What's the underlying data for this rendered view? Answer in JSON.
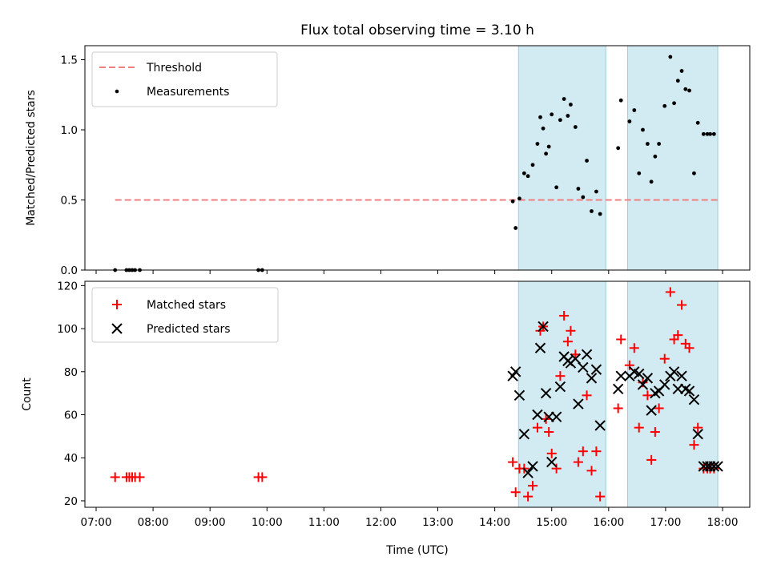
{
  "chart_data": [
    {
      "type": "scatter",
      "title": "Flux total observing time = 3.10 h",
      "ylabel": "Matched/Predicted stars",
      "xlabel": "",
      "ylim": [
        0,
        1.6
      ],
      "yticks": [
        0.0,
        0.5,
        1.0,
        1.5
      ],
      "ytick_labels": [
        "0.0",
        "0.5",
        "1.0",
        "1.5"
      ],
      "threshold": {
        "name": "Threshold",
        "value": 0.5,
        "x_start": "07:20",
        "x_end": "17:55",
        "color": "#f08080"
      },
      "shaded_intervals": [
        [
          "14:25",
          "15:57"
        ],
        [
          "16:20",
          "17:55"
        ]
      ],
      "legend": {
        "placement": "top-left",
        "entries": [
          "Threshold",
          "Measurements"
        ]
      },
      "series": [
        {
          "name": "Measurements",
          "color": "#000000",
          "x": [
            "07:20",
            "07:32",
            "07:35",
            "07:38",
            "07:41",
            "07:46",
            "09:51",
            "09:55",
            "14:19",
            "14:22",
            "14:26",
            "14:31",
            "14:35",
            "14:40",
            "14:45",
            "14:48",
            "14:51",
            "14:54",
            "14:57",
            "15:00",
            "15:05",
            "15:09",
            "15:13",
            "15:17",
            "15:20",
            "15:25",
            "15:28",
            "15:33",
            "15:37",
            "15:42",
            "15:47",
            "15:51",
            "16:10",
            "16:13",
            "16:22",
            "16:27",
            "16:32",
            "16:36",
            "16:41",
            "16:45",
            "16:49",
            "16:53",
            "16:59",
            "17:05",
            "17:09",
            "17:13",
            "17:17",
            "17:21",
            "17:25",
            "17:30",
            "17:34",
            "17:40",
            "17:44",
            "17:47",
            "17:51"
          ],
          "y": [
            0.0,
            0.0,
            0.0,
            0.0,
            0.0,
            0.0,
            0.0,
            0.0,
            0.49,
            0.3,
            0.51,
            0.69,
            0.67,
            0.75,
            0.9,
            1.09,
            1.01,
            0.83,
            0.88,
            1.11,
            0.59,
            1.07,
            1.22,
            1.1,
            1.18,
            1.02,
            0.58,
            0.52,
            0.78,
            0.42,
            0.56,
            0.4,
            0.87,
            1.21,
            1.06,
            1.14,
            0.69,
            1.0,
            0.9,
            0.63,
            0.81,
            0.9,
            1.17,
            1.52,
            1.19,
            1.35,
            1.42,
            1.29,
            1.28,
            0.69,
            1.05,
            0.97,
            0.97,
            0.97,
            0.97
          ]
        }
      ]
    },
    {
      "type": "scatter",
      "title": "",
      "ylabel": "Count",
      "xlabel": "Time (UTC)",
      "ylim": [
        17,
        122
      ],
      "yticks": [
        20,
        40,
        60,
        80,
        100,
        120
      ],
      "ytick_labels": [
        "20",
        "40",
        "60",
        "80",
        "100",
        "120"
      ],
      "xlim": [
        "07:00",
        "18:30"
      ],
      "xticks": [
        "07:00",
        "08:00",
        "09:00",
        "10:00",
        "11:00",
        "12:00",
        "13:00",
        "14:00",
        "15:00",
        "16:00",
        "17:00",
        "18:00"
      ],
      "xtick_labels": [
        "07:00",
        "08:00",
        "09:00",
        "10:00",
        "11:00",
        "12:00",
        "13:00",
        "14:00",
        "15:00",
        "16:00",
        "17:00",
        "18:00"
      ],
      "shaded_intervals": [
        [
          "14:25",
          "15:57"
        ],
        [
          "16:20",
          "17:55"
        ]
      ],
      "legend": {
        "placement": "top-left",
        "entries": [
          "Matched stars",
          "Predicted stars"
        ]
      },
      "series": [
        {
          "name": "Matched stars",
          "color": "#ff0000",
          "x": [
            "07:20",
            "07:32",
            "07:35",
            "07:38",
            "07:41",
            "07:46",
            "09:51",
            "09:55",
            "14:19",
            "14:22",
            "14:26",
            "14:31",
            "14:35",
            "14:40",
            "14:45",
            "14:48",
            "14:51",
            "14:54",
            "14:57",
            "15:00",
            "15:05",
            "15:09",
            "15:13",
            "15:17",
            "15:20",
            "15:25",
            "15:28",
            "15:33",
            "15:37",
            "15:42",
            "15:47",
            "15:51",
            "16:10",
            "16:13",
            "16:22",
            "16:27",
            "16:32",
            "16:36",
            "16:41",
            "16:45",
            "16:49",
            "16:53",
            "16:59",
            "17:05",
            "17:09",
            "17:13",
            "17:17",
            "17:21",
            "17:25",
            "17:30",
            "17:34",
            "17:40",
            "17:44",
            "17:47",
            "17:51"
          ],
          "y": [
            31,
            31,
            31,
            31,
            31,
            31,
            31,
            31,
            38,
            24,
            35,
            35,
            22,
            27,
            54,
            99,
            101,
            58,
            52,
            42,
            35,
            78,
            106,
            94,
            99,
            88,
            38,
            43,
            69,
            34,
            43,
            22,
            63,
            95,
            83,
            91,
            54,
            75,
            69,
            39,
            52,
            63,
            86,
            117,
            95,
            97,
            111,
            93,
            91,
            46,
            54,
            35,
            35,
            35,
            35
          ]
        },
        {
          "name": "Predicted stars",
          "color": "#000000",
          "x": [
            "14:19",
            "14:22",
            "14:26",
            "14:31",
            "14:35",
            "14:40",
            "14:45",
            "14:48",
            "14:51",
            "14:54",
            "14:57",
            "15:00",
            "15:05",
            "15:09",
            "15:13",
            "15:17",
            "15:20",
            "15:25",
            "15:28",
            "15:33",
            "15:37",
            "15:42",
            "15:47",
            "15:51",
            "16:10",
            "16:13",
            "16:22",
            "16:27",
            "16:32",
            "16:36",
            "16:41",
            "16:45",
            "16:49",
            "16:53",
            "16:59",
            "17:05",
            "17:09",
            "17:13",
            "17:17",
            "17:21",
            "17:25",
            "17:30",
            "17:34",
            "17:40",
            "17:44",
            "17:47",
            "17:51",
            "17:55"
          ],
          "y": [
            78,
            80,
            69,
            51,
            33,
            36,
            60,
            91,
            101,
            70,
            59,
            38,
            59,
            73,
            87,
            85,
            84,
            86,
            65,
            82,
            88,
            77,
            81,
            55,
            72,
            78,
            78,
            80,
            79,
            74,
            77,
            62,
            70,
            71,
            74,
            78,
            80,
            72,
            78,
            72,
            71,
            67,
            51,
            36,
            36,
            36,
            36,
            36
          ]
        }
      ]
    }
  ]
}
